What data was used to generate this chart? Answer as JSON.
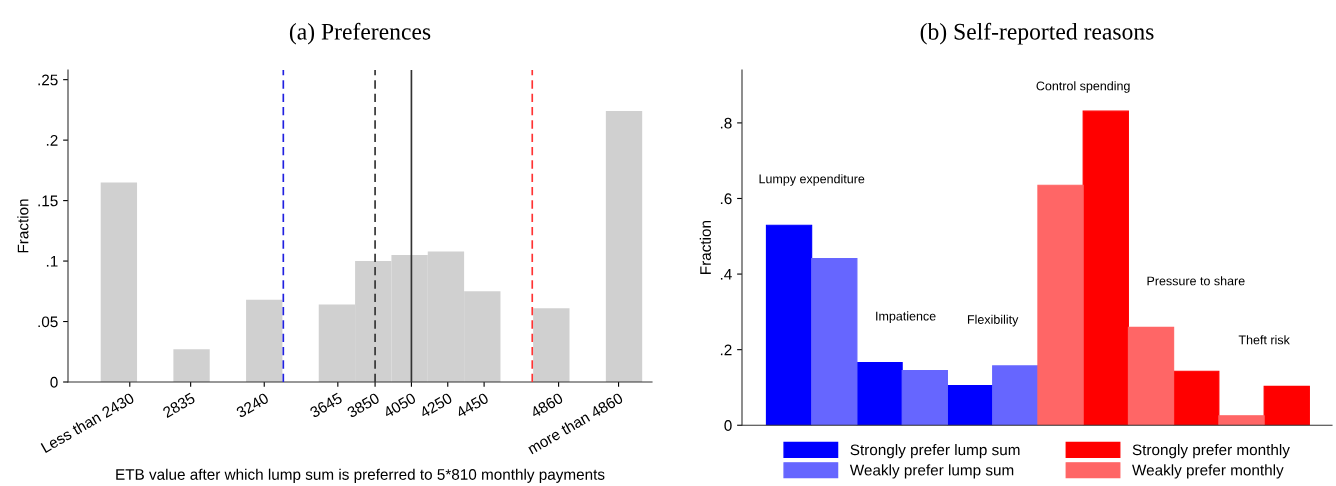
{
  "chart_data": [
    {
      "type": "histogram",
      "title": "(a) Preferences",
      "xlabel": "ETB value after which lump sum is preferred to 5*810 monthly payments",
      "ylabel": "Fraction",
      "bins": [
        2340,
        2540,
        2740,
        2940,
        3140,
        3340,
        3540,
        3740,
        3940,
        4140,
        4340,
        4540,
        4720,
        4920,
        5120,
        5320
      ],
      "values": [
        0.165,
        0,
        0.027,
        0,
        0.068,
        0,
        0.064,
        0.1,
        0.105,
        0.108,
        0.075,
        0,
        0.061,
        0,
        0.224
      ],
      "color": "#d0d0d0",
      "xlim": [
        2160,
        5374
      ],
      "xticks": [
        {
          "value": 2500,
          "label": "Less than 2430"
        },
        2835,
        3240,
        3645,
        3850,
        4050,
        4250,
        4450,
        4860,
        {
          "value": 5190,
          "label": "more than 4860"
        }
      ],
      "ylim": [
        0,
        0.258
      ],
      "yticks": [
        0,
        {
          "value": 0.05,
          "label": ".05"
        },
        {
          "value": 0.1,
          "label": ".1"
        },
        {
          "value": 0.15,
          "label": ".15"
        },
        {
          "value": 0.2,
          "label": ".2"
        },
        {
          "value": 0.25,
          "label": ".25"
        }
      ],
      "ref_lines": [
        {
          "axis": "x",
          "value": 3345,
          "color": "#2020e0",
          "line_style": "dashed"
        },
        {
          "axis": "x",
          "value": 3850,
          "color": "#333333",
          "line_style": "dashed"
        },
        {
          "axis": "x",
          "value": 4050,
          "color": "#333333",
          "line_style": "solid"
        },
        {
          "axis": "x",
          "value": 4715,
          "color": "#ff3333",
          "line_style": "dashed"
        }
      ],
      "grid": false
    },
    {
      "type": "bar",
      "title": "(b) Self-reported reasons",
      "ylabel": "Fraction",
      "categories": [
        null,
        null,
        null,
        null,
        null,
        null,
        null,
        null,
        null,
        null,
        null,
        null
      ],
      "series": [
        {
          "name": "Strongly prefer lump sum",
          "color": "#0000ff",
          "values": [
            0.529,
            null,
            0.166,
            null,
            0.105,
            null,
            null,
            null,
            null,
            null,
            null,
            null
          ]
        },
        {
          "name": "Weakly prefer lump sum",
          "color": "#6666ff",
          "values": [
            null,
            0.441,
            null,
            0.145,
            null,
            0.157,
            null,
            null,
            null,
            null,
            null,
            null
          ]
        },
        {
          "name": "Strongly prefer monthly",
          "color": "#ff0000",
          "values": [
            null,
            null,
            null,
            null,
            null,
            null,
            null,
            0.831,
            null,
            0.143,
            null,
            0.103
          ]
        },
        {
          "name": "Weakly prefer monthly",
          "color": "#ff6666",
          "values": [
            null,
            null,
            null,
            null,
            null,
            null,
            0.635,
            null,
            0.259,
            null,
            0.025,
            null
          ]
        }
      ],
      "ylim": [
        0,
        0.94
      ],
      "yticks": [
        0,
        {
          "value": 0.2,
          "label": ".2"
        },
        {
          "value": 0.4,
          "label": ".4"
        },
        {
          "value": 0.6,
          "label": ".6"
        },
        {
          "value": 0.8,
          "label": ".8"
        }
      ],
      "annotations": [
        "Lumpy expenditure",
        "Impatience",
        "Flexibility",
        "Control spending",
        "Pressure to share",
        "Theft risk"
      ],
      "legend": "bottom",
      "grid": false
    }
  ]
}
